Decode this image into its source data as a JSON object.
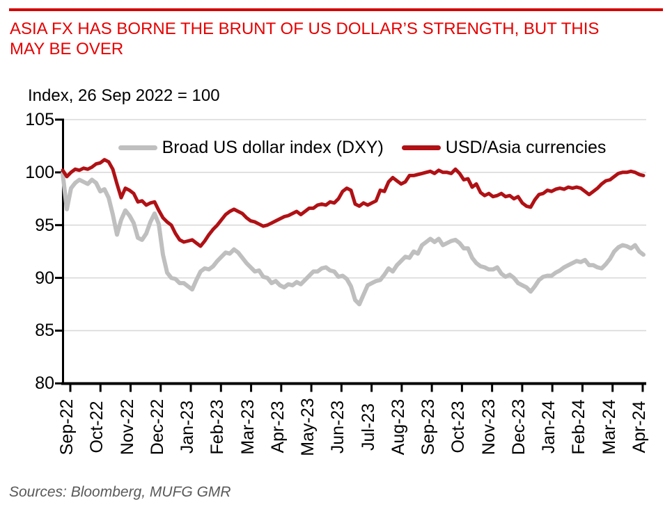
{
  "header": {
    "title_lines": [
      "ASIA FX HAS BORNE THE BRUNT OF US DOLLAR’S STRENGTH, BUT THIS",
      "MAY BE OVER"
    ],
    "title_color": "#E60000",
    "rule_color": "#D40000"
  },
  "footer": {
    "sources": "Sources:  Bloomberg, MUFG GMR"
  },
  "chart_data": {
    "type": "line",
    "title": "Index, 26 Sep 2022 = 100",
    "ylim": [
      80,
      105
    ],
    "yticks": [
      80,
      85,
      90,
      95,
      100,
      105
    ],
    "grid": "horizontal",
    "gridline_color": "#D9D9D9",
    "axis_color": "#000000",
    "legend_position": "top-center",
    "x_tick_labels": [
      "Sep-22",
      "Oct-22",
      "Nov-22",
      "Dec-22",
      "Jan-23",
      "Feb-23",
      "Mar-23",
      "Apr-23",
      "May-23",
      "Jun-23",
      "Jul-23",
      "Aug-23",
      "Sep-23",
      "Oct-23",
      "Nov-23",
      "Dec-23",
      "Jan-24",
      "Feb-24",
      "Mar-24",
      "Apr-24"
    ],
    "x_unit": "months (0 = Sep-22 tick, data starts 26 Sep 2022)",
    "sampling": {
      "x_start": -0.2543,
      "x_step": 0.1387
    },
    "series": [
      {
        "name": "Broad US dollar index (DXY)",
        "color": "#BFBFBF",
        "width": 6,
        "values": [
          99.9,
          96.5,
          98.5,
          99.0,
          99.3,
          99.1,
          98.9,
          99.3,
          99.0,
          98.2,
          98.4,
          97.6,
          96.0,
          94.1,
          95.5,
          96.4,
          95.9,
          95.2,
          93.8,
          93.6,
          94.2,
          95.3,
          96.1,
          95.1,
          92.2,
          90.5,
          90.0,
          89.9,
          89.5,
          89.5,
          89.2,
          88.9,
          89.8,
          90.6,
          90.9,
          90.8,
          91.1,
          91.6,
          92.0,
          92.4,
          92.3,
          92.7,
          92.4,
          91.9,
          91.4,
          91.0,
          90.6,
          90.7,
          90.1,
          90.0,
          89.5,
          89.7,
          89.3,
          89.1,
          89.4,
          89.3,
          89.6,
          89.4,
          89.8,
          90.2,
          90.6,
          90.6,
          90.9,
          91.0,
          90.7,
          90.6,
          90.1,
          90.2,
          89.9,
          89.2,
          87.9,
          87.5,
          88.4,
          89.3,
          89.5,
          89.7,
          89.8,
          90.3,
          90.9,
          90.6,
          91.2,
          91.6,
          92.0,
          91.9,
          92.5,
          92.3,
          93.1,
          93.4,
          93.7,
          93.4,
          93.7,
          93.1,
          93.3,
          93.5,
          93.6,
          93.3,
          92.8,
          92.8,
          91.9,
          91.4,
          91.1,
          91.0,
          90.8,
          90.8,
          91.0,
          90.4,
          90.1,
          90.3,
          90.0,
          89.5,
          89.3,
          89.1,
          88.7,
          89.2,
          89.8,
          90.1,
          90.2,
          90.2,
          90.5,
          90.7,
          91.0,
          91.2,
          91.4,
          91.6,
          91.5,
          91.7,
          91.2,
          91.2,
          91.0,
          90.9,
          91.3,
          91.8,
          92.5,
          92.9,
          93.1,
          93.0,
          92.8,
          93.1,
          92.5,
          92.2
        ]
      },
      {
        "name": "USD/Asia currencies",
        "color": "#B01115",
        "width": 5,
        "values": [
          100.2,
          99.6,
          100.0,
          100.3,
          100.2,
          100.4,
          100.3,
          100.5,
          100.8,
          100.9,
          101.2,
          101.0,
          100.3,
          98.9,
          97.6,
          98.5,
          98.3,
          98.0,
          97.2,
          97.3,
          96.9,
          97.1,
          97.2,
          96.4,
          95.7,
          95.3,
          95.0,
          94.2,
          93.6,
          93.4,
          93.5,
          93.6,
          93.3,
          93.0,
          93.5,
          94.1,
          94.6,
          95.0,
          95.5,
          96.0,
          96.3,
          96.5,
          96.3,
          96.1,
          95.7,
          95.4,
          95.3,
          95.1,
          94.9,
          95.0,
          95.2,
          95.4,
          95.6,
          95.8,
          95.9,
          96.1,
          96.3,
          96.0,
          96.3,
          96.6,
          96.6,
          96.9,
          97.0,
          96.9,
          97.2,
          97.1,
          97.5,
          98.2,
          98.5,
          98.3,
          97.0,
          96.8,
          97.1,
          96.9,
          97.1,
          97.3,
          98.3,
          98.2,
          99.1,
          99.5,
          99.2,
          98.9,
          99.1,
          99.7,
          99.7,
          99.8,
          99.9,
          100.0,
          100.1,
          99.9,
          100.2,
          100.0,
          100.0,
          99.9,
          100.3,
          99.9,
          99.3,
          99.4,
          98.6,
          98.9,
          98.1,
          97.8,
          98.0,
          97.7,
          97.8,
          98.0,
          97.7,
          97.8,
          97.5,
          97.7,
          97.1,
          96.8,
          96.7,
          97.4,
          97.9,
          98.0,
          98.3,
          98.2,
          98.4,
          98.5,
          98.4,
          98.6,
          98.5,
          98.6,
          98.5,
          98.2,
          97.9,
          98.2,
          98.5,
          98.9,
          99.2,
          99.3,
          99.6,
          99.9,
          100.0,
          100.0,
          100.1,
          100.0,
          99.8,
          99.7
        ]
      }
    ]
  }
}
